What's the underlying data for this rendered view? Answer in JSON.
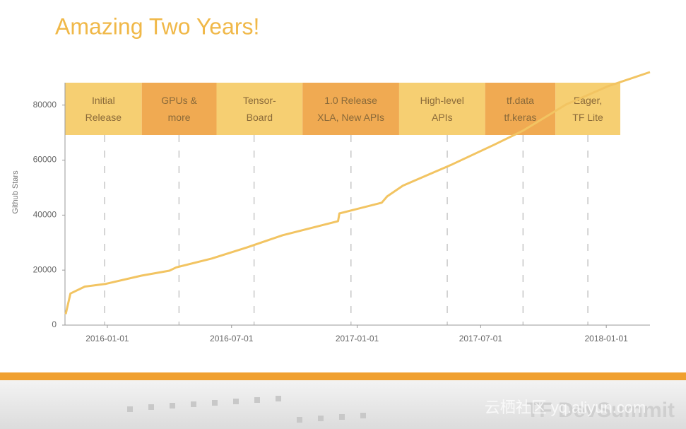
{
  "chart_data": {
    "type": "line",
    "title": "Amazing Two Years!",
    "y_label": "Github Stars",
    "color": "#f2c462",
    "x": [
      "2015-11-01",
      "2015-11-08",
      "2015-11-29",
      "2015-12-30",
      "2016-02-20",
      "2016-04-01",
      "2016-04-11",
      "2016-06-02",
      "2016-07-24",
      "2016-09-14",
      "2016-12-04",
      "2016-12-06",
      "2017-02-06",
      "2017-02-14",
      "2017-03-09",
      "2017-05-20",
      "2017-07-21",
      "2017-09-01",
      "2017-11-03",
      "2018-01-04",
      "2018-03-06"
    ],
    "values": [
      4000,
      11500,
      14000,
      15000,
      18000,
      19800,
      21000,
      24200,
      28300,
      32700,
      37800,
      40600,
      44500,
      46800,
      50700,
      58400,
      65600,
      70700,
      80200,
      86900,
      92000
    ],
    "xlim": [
      "2015-10-31",
      "2018-03-06"
    ],
    "xticks": [
      "2016-01-01",
      "2016-07-01",
      "2017-01-01",
      "2017-07-01",
      "2018-01-01"
    ],
    "ylim": [
      0,
      92000
    ],
    "yticks": [
      0,
      20000,
      40000,
      60000,
      80000
    ],
    "milestones": [
      {
        "date": "2015-12-28",
        "label": [
          "Initial",
          "Release"
        ],
        "color": "#f6cf72"
      },
      {
        "date": "2016-04-15",
        "label": [
          "GPUs &",
          "more"
        ],
        "color": "#f0aa52"
      },
      {
        "date": "2016-08-03",
        "label": [
          "Tensor-",
          "Board"
        ],
        "color": "#f6cf72"
      },
      {
        "date": "2016-12-23",
        "label": [
          "1.0 Release",
          "XLA, New APIs"
        ],
        "color": "#f0aa52"
      },
      {
        "date": "2017-05-13",
        "label": [
          "High-level",
          "APIs"
        ],
        "color": "#f6cf72"
      },
      {
        "date": "2017-09-01",
        "label": [
          "tf.data",
          "tf.keras"
        ],
        "color": "#f0aa52"
      },
      {
        "date": "2017-12-05",
        "label": [
          "Eager,",
          "TF Lite"
        ],
        "color": "#f6cf72"
      }
    ]
  },
  "footer": {
    "text": "TF DevSummit",
    "watermark": "云栖社区 yq.aliyun.com"
  }
}
